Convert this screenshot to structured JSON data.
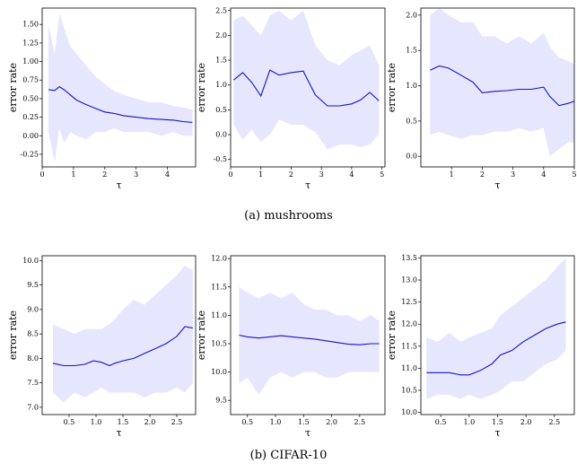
{
  "captions": {
    "a": "(a)  mushrooms",
    "b": "(b)  CIFAR-10"
  },
  "colors": {
    "line": "#1414c8",
    "band": "#e6e6ff"
  },
  "chart_data": [
    {
      "type": "line",
      "xlabel": "τ",
      "ylabel": "error rate",
      "xlim": [
        0,
        4.9
      ],
      "ylim": [
        -0.42,
        1.72
      ],
      "xticks": [
        "0",
        "1",
        "2",
        "3",
        "4"
      ],
      "xtick_values": [
        0,
        1,
        2,
        3,
        4
      ],
      "yticks": [
        "-0.25",
        "0.00",
        "0.25",
        "0.50",
        "0.75",
        "1.00",
        "1.25",
        "1.50"
      ],
      "ytick_values": [
        -0.25,
        0,
        0.25,
        0.5,
        0.75,
        1.0,
        1.25,
        1.5
      ],
      "x": [
        0.2,
        0.4,
        0.55,
        0.7,
        0.9,
        1.1,
        1.4,
        1.7,
        2.0,
        2.3,
        2.6,
        3.0,
        3.4,
        3.8,
        4.2,
        4.5,
        4.8
      ],
      "y": [
        0.62,
        0.61,
        0.66,
        0.62,
        0.55,
        0.48,
        0.42,
        0.37,
        0.32,
        0.3,
        0.27,
        0.25,
        0.23,
        0.22,
        0.21,
        0.19,
        0.18
      ],
      "lower": [
        0.05,
        -0.35,
        0.1,
        -0.1,
        0.05,
        0.0,
        -0.05,
        0.05,
        0.05,
        0.1,
        0.05,
        0.05,
        0.05,
        0.0,
        0.05,
        0.0,
        0.0
      ],
      "upper": [
        1.5,
        1.1,
        1.65,
        1.45,
        1.2,
        1.1,
        0.95,
        0.8,
        0.7,
        0.6,
        0.55,
        0.5,
        0.45,
        0.45,
        0.4,
        0.38,
        0.35
      ]
    },
    {
      "type": "line",
      "xlabel": "τ",
      "ylabel": "error rate",
      "xlim": [
        0,
        5.1
      ],
      "ylim": [
        -0.65,
        2.55
      ],
      "xticks": [
        "0",
        "1",
        "2",
        "3",
        "4",
        "5"
      ],
      "xtick_values": [
        0,
        1,
        2,
        3,
        4,
        5
      ],
      "yticks": [
        "-0.5",
        "0.0",
        "0.5",
        "1.0",
        "1.5",
        "2.0",
        "2.5"
      ],
      "ytick_values": [
        -0.5,
        0,
        0.5,
        1.0,
        1.5,
        2.0,
        2.5
      ],
      "x": [
        0.1,
        0.4,
        0.7,
        1.0,
        1.3,
        1.6,
        2.0,
        2.4,
        2.8,
        3.2,
        3.6,
        4.0,
        4.3,
        4.6,
        4.9
      ],
      "y": [
        1.1,
        1.25,
        1.05,
        0.78,
        1.3,
        1.2,
        1.25,
        1.28,
        0.8,
        0.58,
        0.58,
        0.62,
        0.7,
        0.85,
        0.68
      ],
      "lower": [
        0.2,
        -0.1,
        0.1,
        -0.15,
        0.0,
        0.3,
        0.2,
        0.2,
        0.05,
        -0.3,
        -0.2,
        -0.2,
        -0.25,
        -0.2,
        0.0
      ],
      "upper": [
        2.3,
        2.4,
        2.2,
        2.0,
        2.4,
        2.5,
        2.3,
        2.5,
        1.8,
        1.5,
        1.4,
        1.6,
        1.7,
        1.8,
        1.4
      ]
    },
    {
      "type": "line",
      "xlabel": "τ",
      "ylabel": "error rate",
      "xlim": [
        0,
        5.0
      ],
      "ylim": [
        -0.15,
        2.1
      ],
      "xticks": [
        "1",
        "2",
        "3",
        "4",
        "5"
      ],
      "xtick_values": [
        1,
        2,
        3,
        4,
        5
      ],
      "yticks": [
        "0.0",
        "0.5",
        "1.0",
        "1.5",
        "2.0"
      ],
      "ytick_values": [
        0,
        0.5,
        1.0,
        1.5,
        2.0
      ],
      "x": [
        0.3,
        0.6,
        0.9,
        1.3,
        1.7,
        2.0,
        2.4,
        2.8,
        3.2,
        3.6,
        4.0,
        4.2,
        4.5,
        4.8,
        5.0
      ],
      "y": [
        1.22,
        1.28,
        1.25,
        1.15,
        1.05,
        0.9,
        0.92,
        0.93,
        0.95,
        0.95,
        0.98,
        0.85,
        0.72,
        0.75,
        0.78
      ],
      "lower": [
        0.3,
        0.35,
        0.3,
        0.25,
        0.3,
        0.3,
        0.35,
        0.35,
        0.4,
        0.35,
        0.4,
        0.0,
        0.1,
        0.2,
        0.2
      ],
      "upper": [
        2.0,
        2.1,
        2.0,
        1.9,
        1.9,
        1.7,
        1.7,
        1.6,
        1.7,
        1.6,
        1.75,
        1.55,
        1.4,
        1.35,
        1.3
      ]
    },
    {
      "type": "line",
      "xlabel": "τ",
      "ylabel": "error rate",
      "xlim": [
        0,
        2.85
      ],
      "ylim": [
        6.85,
        10.1
      ],
      "xticks": [
        "0.5",
        "1.0",
        "1.5",
        "2.0",
        "2.5"
      ],
      "xtick_values": [
        0.5,
        1.0,
        1.5,
        2.0,
        2.5
      ],
      "yticks": [
        "7.0",
        "7.5",
        "8.0",
        "8.5",
        "9.0",
        "9.5",
        "10.0"
      ],
      "ytick_values": [
        7.0,
        7.5,
        8.0,
        8.5,
        9.0,
        9.5,
        10.0
      ],
      "x": [
        0.2,
        0.4,
        0.6,
        0.8,
        0.95,
        1.1,
        1.25,
        1.35,
        1.5,
        1.7,
        1.9,
        2.1,
        2.3,
        2.5,
        2.65,
        2.8
      ],
      "y": [
        7.9,
        7.85,
        7.85,
        7.88,
        7.95,
        7.92,
        7.85,
        7.9,
        7.95,
        8.0,
        8.1,
        8.2,
        8.3,
        8.45,
        8.65,
        8.62
      ],
      "lower": [
        7.3,
        7.1,
        7.3,
        7.2,
        7.3,
        7.4,
        7.3,
        7.3,
        7.3,
        7.3,
        7.2,
        7.3,
        7.3,
        7.4,
        7.3,
        7.5
      ],
      "upper": [
        8.7,
        8.6,
        8.5,
        8.6,
        8.6,
        8.6,
        8.7,
        8.8,
        9.0,
        9.2,
        9.1,
        9.3,
        9.5,
        9.7,
        9.9,
        9.8
      ]
    },
    {
      "type": "line",
      "xlabel": "τ",
      "ylabel": "error rate",
      "xlim": [
        0.2,
        2.95
      ],
      "ylim": [
        9.25,
        12.05
      ],
      "xticks": [
        "0.5",
        "1.0",
        "1.5",
        "2.0",
        "2.5"
      ],
      "xtick_values": [
        0.5,
        1.0,
        1.5,
        2.0,
        2.5
      ],
      "yticks": [
        "9.5",
        "10.0",
        "10.5",
        "11.0",
        "11.5",
        "12.0"
      ],
      "ytick_values": [
        9.5,
        10.0,
        10.5,
        11.0,
        11.5,
        12.0
      ],
      "x": [
        0.35,
        0.5,
        0.7,
        0.9,
        1.1,
        1.3,
        1.5,
        1.7,
        1.9,
        2.1,
        2.3,
        2.5,
        2.7,
        2.85
      ],
      "y": [
        10.65,
        10.62,
        10.6,
        10.62,
        10.64,
        10.62,
        10.6,
        10.58,
        10.55,
        10.52,
        10.49,
        10.48,
        10.5,
        10.5
      ],
      "lower": [
        9.8,
        9.9,
        9.6,
        9.9,
        10.0,
        9.9,
        10.0,
        10.0,
        9.9,
        9.9,
        10.0,
        10.0,
        10.0,
        10.0
      ],
      "upper": [
        11.5,
        11.4,
        11.3,
        11.4,
        11.3,
        11.4,
        11.2,
        11.1,
        11.1,
        11.0,
        11.0,
        10.9,
        11.0,
        10.9
      ]
    },
    {
      "type": "line",
      "xlabel": "τ",
      "ylabel": "error rate",
      "xlim": [
        0.15,
        2.85
      ],
      "ylim": [
        9.95,
        13.55
      ],
      "xticks": [
        "0.5",
        "1.0",
        "1.5",
        "2.0",
        "2.5"
      ],
      "xtick_values": [
        0.5,
        1.0,
        1.5,
        2.0,
        2.5
      ],
      "yticks": [
        "10.0",
        "10.5",
        "11.0",
        "11.5",
        "12.0",
        "12.5",
        "13.0",
        "13.5"
      ],
      "ytick_values": [
        10.0,
        10.5,
        11.0,
        11.5,
        12.0,
        12.5,
        13.0,
        13.5
      ],
      "x": [
        0.25,
        0.45,
        0.65,
        0.85,
        1.0,
        1.2,
        1.4,
        1.55,
        1.75,
        1.95,
        2.15,
        2.35,
        2.55,
        2.7
      ],
      "y": [
        10.9,
        10.9,
        10.9,
        10.85,
        10.85,
        10.95,
        11.1,
        11.3,
        11.4,
        11.6,
        11.75,
        11.9,
        12.0,
        12.05
      ],
      "lower": [
        10.3,
        10.4,
        10.4,
        10.3,
        10.4,
        10.3,
        10.4,
        10.5,
        10.7,
        10.7,
        10.9,
        11.1,
        11.2,
        11.4
      ],
      "upper": [
        11.7,
        11.6,
        11.8,
        11.6,
        11.7,
        11.8,
        11.9,
        12.2,
        12.4,
        12.6,
        12.8,
        13.0,
        13.3,
        13.5
      ]
    }
  ]
}
